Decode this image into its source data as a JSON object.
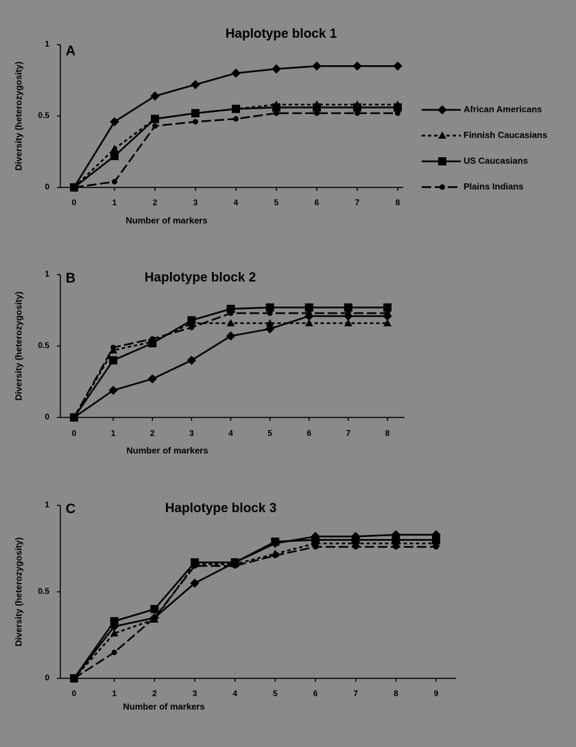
{
  "chart_data": [
    {
      "type": "line",
      "title": "Haplotype block 1",
      "panel_label": "A",
      "xlabel": "Number of markers",
      "ylabel": "Diversity (heterozygosity)",
      "x": [
        0,
        1,
        2,
        3,
        4,
        5,
        6,
        7,
        8
      ],
      "xlim": [
        0,
        8
      ],
      "xticks": [
        0,
        1,
        2,
        3,
        4,
        5,
        6,
        7,
        8
      ],
      "ylim": [
        0,
        1
      ],
      "yticks": [
        0,
        0.5,
        1
      ],
      "legend": "right",
      "series": [
        {
          "name": "African Americans",
          "color": "#000000",
          "marker": "diamond",
          "dash": "solid",
          "values": [
            0,
            0.46,
            0.64,
            0.72,
            0.8,
            0.83,
            0.85,
            0.85,
            0.85
          ]
        },
        {
          "name": "Finnish Caucasians",
          "color": "#000000",
          "marker": "triangle",
          "dash": "dashed",
          "values": [
            0,
            0.27,
            0.48,
            0.52,
            0.55,
            0.58,
            0.58,
            0.58,
            0.58
          ]
        },
        {
          "name": "US Caucasians",
          "color": "#000000",
          "marker": "square",
          "dash": "solid",
          "values": [
            0,
            0.22,
            0.48,
            0.52,
            0.55,
            0.56,
            0.56,
            0.56,
            0.56
          ]
        },
        {
          "name": "Plains Indians",
          "color": "#000000",
          "marker": "circle",
          "dash": "longdash",
          "values": [
            0,
            0.04,
            0.43,
            0.46,
            0.48,
            0.52,
            0.52,
            0.52,
            0.52
          ]
        }
      ]
    },
    {
      "type": "line",
      "title": "Haplotype block 2",
      "panel_label": "B",
      "xlabel": "Number of markers",
      "ylabel": "Diversity (heterozygosity)",
      "x": [
        0,
        1,
        2,
        3,
        4,
        5,
        6,
        7,
        8
      ],
      "xlim": [
        0,
        8
      ],
      "xticks": [
        0,
        1,
        2,
        3,
        4,
        5,
        6,
        7,
        8
      ],
      "ylim": [
        0,
        1
      ],
      "yticks": [
        0,
        0.5,
        1
      ],
      "series": [
        {
          "color": "#000000",
          "marker": "diamond",
          "dash": "solid",
          "values": [
            0,
            0.19,
            0.27,
            0.4,
            0.57,
            0.62,
            0.71,
            0.71,
            0.71
          ]
        },
        {
          "color": "#000000",
          "marker": "triangle",
          "dash": "dashed",
          "values": [
            0,
            0.47,
            0.53,
            0.66,
            0.66,
            0.66,
            0.66,
            0.66,
            0.66
          ]
        },
        {
          "color": "#000000",
          "marker": "square",
          "dash": "solid",
          "values": [
            0,
            0.4,
            0.52,
            0.68,
            0.76,
            0.77,
            0.77,
            0.77,
            0.77
          ]
        },
        {
          "color": "#000000",
          "marker": "circle",
          "dash": "longdash",
          "values": [
            0,
            0.49,
            0.55,
            0.63,
            0.73,
            0.73,
            0.73,
            0.73,
            0.73
          ]
        }
      ]
    },
    {
      "type": "line",
      "title": "Haplotype block 3",
      "panel_label": "C",
      "xlabel": "Number of markers",
      "ylabel": "Diversity (heterozygosity)",
      "x": [
        0,
        1,
        2,
        3,
        4,
        5,
        6,
        7,
        8,
        9
      ],
      "xlim": [
        0,
        9
      ],
      "xticks": [
        0,
        1,
        2,
        3,
        4,
        5,
        6,
        7,
        8,
        9
      ],
      "ylim": [
        0,
        1
      ],
      "yticks": [
        0,
        0.5,
        1
      ],
      "series": [
        {
          "color": "#000000",
          "marker": "diamond",
          "dash": "solid",
          "values": [
            0,
            0.3,
            0.35,
            0.55,
            0.67,
            0.78,
            0.82,
            0.82,
            0.83,
            0.83
          ]
        },
        {
          "color": "#000000",
          "marker": "triangle",
          "dash": "dashed",
          "values": [
            0,
            0.26,
            0.34,
            0.66,
            0.66,
            0.72,
            0.78,
            0.78,
            0.78,
            0.78
          ]
        },
        {
          "color": "#000000",
          "marker": "square",
          "dash": "solid",
          "values": [
            0,
            0.33,
            0.4,
            0.67,
            0.67,
            0.79,
            0.8,
            0.8,
            0.8,
            0.8
          ]
        },
        {
          "color": "#000000",
          "marker": "circle",
          "dash": "longdash",
          "values": [
            0,
            0.15,
            0.35,
            0.65,
            0.65,
            0.71,
            0.76,
            0.76,
            0.76,
            0.76
          ]
        }
      ]
    }
  ]
}
